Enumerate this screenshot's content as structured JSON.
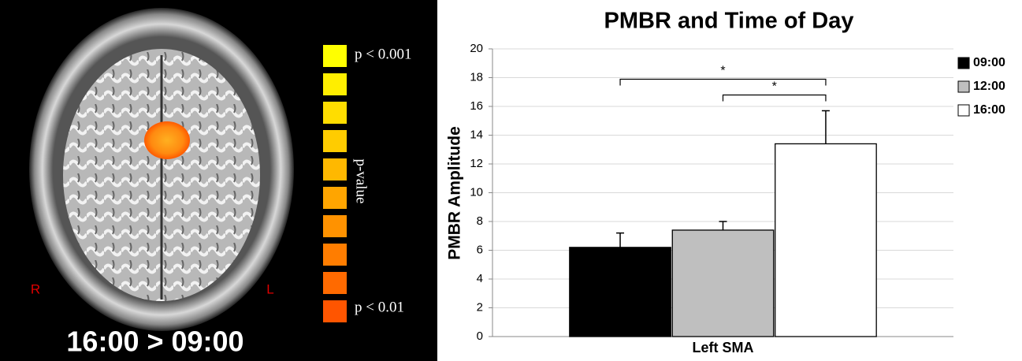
{
  "panel": {
    "left_label": "R",
    "right_label": "L",
    "contrast": "16:00 > 09:00",
    "colorbar": {
      "title": "p-value",
      "top": "p < 0.001",
      "bottom": "p < 0.01"
    }
  },
  "chart_data": {
    "type": "bar",
    "title": "PMBR and Time of Day",
    "ylabel": "PMBR Amplitude",
    "categories": [
      "Left SMA"
    ],
    "series": [
      {
        "name": "09:00",
        "color": "#000000",
        "values": [
          6.2
        ],
        "errors": [
          1.0
        ]
      },
      {
        "name": "12:00",
        "color": "#bfbfbf",
        "values": [
          7.4
        ],
        "errors": [
          0.6
        ]
      },
      {
        "name": "16:00",
        "color": "#ffffff",
        "values": [
          13.4
        ],
        "errors": [
          2.3
        ]
      }
    ],
    "ylim": [
      0,
      20
    ],
    "yticks": [
      0,
      2,
      4,
      6,
      8,
      10,
      12,
      14,
      16,
      18,
      20
    ],
    "grid": true,
    "legend": "right",
    "annotations": [
      {
        "text": "*",
        "between": [
          0,
          2
        ]
      },
      {
        "text": "*",
        "between": [
          1,
          2
        ]
      }
    ]
  }
}
